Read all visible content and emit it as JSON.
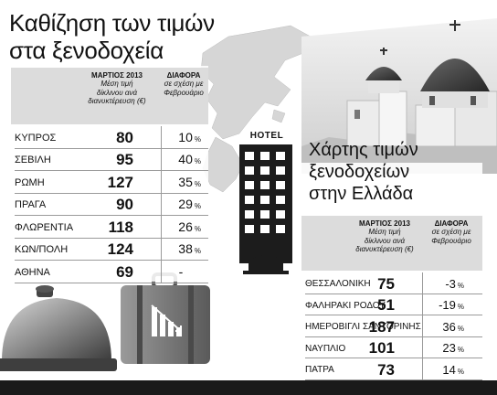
{
  "left_table": {
    "title_line1": "Καθίζηση των τιμών",
    "title_line2": "στα ξενοδοχεία",
    "col1_head": "ΜΑΡΤΙΟΣ 2013",
    "col1_sub1": "Μέση τιμή",
    "col1_sub2": "δίκλινου ανά",
    "col1_sub3": "διανυκτέρευση (€)",
    "col2_head": "ΔΙΑΦΟΡΑ",
    "col2_sub1": "σε σχέση με",
    "col2_sub2": "Φεβρουάριο",
    "rows": [
      {
        "city": "ΚΥΠΡΟΣ",
        "price": "80",
        "diff": "10",
        "pct": "%"
      },
      {
        "city": "ΣΕΒΙΛΗ",
        "price": "95",
        "diff": "40",
        "pct": "%"
      },
      {
        "city": "ΡΩΜΗ",
        "price": "127",
        "diff": "35",
        "pct": "%"
      },
      {
        "city": "ΠΡΑΓΑ",
        "price": "90",
        "diff": "29",
        "pct": "%"
      },
      {
        "city": "ΦΛΩΡΕΝΤΙΑ",
        "price": "118",
        "diff": "26",
        "pct": "%"
      },
      {
        "city": "ΚΩΝ/ΠΟΛΗ",
        "price": "124",
        "diff": "38",
        "pct": "%"
      },
      {
        "city": "ΑΘΗΝΑ",
        "price": "69",
        "diff": "-",
        "pct": ""
      }
    ]
  },
  "right_table": {
    "title_line1": "Χάρτης τιμών",
    "title_line2": "ξενοδοχείων",
    "title_line3": "στην Ελλάδα",
    "col1_head": "ΜΑΡΤΙΟΣ 2013",
    "col1_sub1": "Μέση τιμή",
    "col1_sub2": "δίκλινου ανά",
    "col1_sub3": "διανυκτέρευση (€)",
    "col2_head": "ΔΙΑΦΟΡΑ",
    "col2_sub1": "σε σχέση με",
    "col2_sub2": "Φεβρουάριο",
    "rows": [
      {
        "city": "ΘΕΣΣΑΛΟΝΙΚΗ",
        "price": "75",
        "diff": "-3",
        "pct": "%"
      },
      {
        "city": "ΦΑΛΗΡΑΚΙ ΡΟΔΟΥ",
        "price": "51",
        "diff": "-19",
        "pct": "%"
      },
      {
        "city": "ΗΜΕΡΟΒΙΓΛΙ ΣΑΝΤΟΡΙΝΗΣ",
        "price": "187",
        "diff": "36",
        "pct": "%"
      },
      {
        "city": "ΝΑΥΠΛΙΟ",
        "price": "101",
        "diff": "23",
        "pct": "%"
      },
      {
        "city": "ΠΑΤΡΑ",
        "price": "73",
        "diff": "14",
        "pct": "%"
      }
    ]
  },
  "hotel_sign": "HOTEL",
  "chart_data": [
    {
      "type": "table",
      "title": "Καθίζηση των τιμών στα ξενοδοχεία",
      "columns": [
        "",
        "ΜΑΡΤΙΟΣ 2013 Μέση τιμή δίκλινου ανά διανυκτέρευση (€)",
        "ΔΙΑΦΟΡΑ σε σχέση με Φεβρουάριο"
      ],
      "categories": [
        "ΚΥΠΡΟΣ",
        "ΣΕΒΙΛΗ",
        "ΡΩΜΗ",
        "ΠΡΑΓΑ",
        "ΦΛΩΡΕΝΤΙΑ",
        "ΚΩΝ/ΠΟΛΗ",
        "ΑΘΗΝΑ"
      ],
      "series": [
        {
          "name": "ΜΑΡΤΙΟΣ 2013",
          "values": [
            80,
            95,
            127,
            90,
            118,
            124,
            69
          ]
        },
        {
          "name": "ΔΙΑΦΟΡΑ",
          "values": [
            10,
            40,
            35,
            29,
            26,
            38,
            null
          ]
        }
      ]
    },
    {
      "type": "table",
      "title": "Χάρτης τιμών ξενοδοχείων στην Ελλάδα",
      "columns": [
        "",
        "ΜΑΡΤΙΟΣ 2013 Μέση τιμή δίκλινου ανά διανυκτέρευση (€)",
        "ΔΙΑΦΟΡΑ σε σχέση με Φεβρουάριο"
      ],
      "categories": [
        "ΘΕΣΣΑΛΟΝΙΚΗ",
        "ΦΑΛΗΡΑΚΙ ΡΟΔΟΥ",
        "ΗΜΕΡΟΒΙΓΛΙ ΣΑΝΤΟΡΙΝΗΣ",
        "ΝΑΥΠΛΙΟ",
        "ΠΑΤΡΑ"
      ],
      "series": [
        {
          "name": "ΜΑΡΤΙΟΣ 2013",
          "values": [
            75,
            51,
            187,
            101,
            73
          ]
        },
        {
          "name": "ΔΙΑΦΟΡΑ",
          "values": [
            -3,
            -19,
            36,
            23,
            14
          ]
        }
      ]
    }
  ]
}
